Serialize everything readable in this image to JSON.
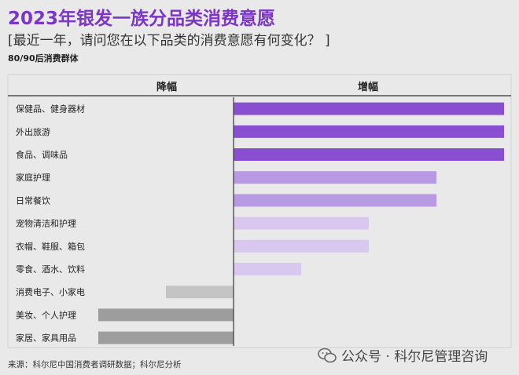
{
  "title": "2023年银发一族分品类消费意愿",
  "subtitle": "[最近一年，请问您在以下品类的消费意愿有何变化？ ]",
  "group_label": "80/90后消费群体",
  "source": "来源：科尔尼中国消费者调研数据；科尔尼分析",
  "watermark": "公众号 · 科尔尼管理咨询",
  "colors": {
    "title": "#7b35c9",
    "increase_strong": "#8a4fd0",
    "increase_medium": "#b79ae3",
    "increase_light": "#d8c8f0",
    "decrease_light": "#c4c4c4",
    "decrease_dark": "#9d9d9d"
  },
  "chart_data": {
    "type": "bar",
    "orientation": "horizontal-diverging",
    "column_headers": {
      "decrease": "降幅",
      "increase": "增幅"
    },
    "categories": [
      "保健品、健身器材",
      "外出旅游",
      "食品、调味品",
      "家庭护理",
      "日常餐饮",
      "宠物清洁和护理",
      "衣帽、鞋服、箱包",
      "零食、酒水、饮料",
      "消费电子、小家电",
      "美妆、个人护理",
      "家居、家具用品"
    ],
    "values": [
      4,
      4,
      4,
      3,
      3,
      2,
      2,
      1,
      -1,
      -2,
      -2
    ],
    "shades": [
      "strong",
      "strong",
      "strong",
      "medium",
      "medium",
      "light",
      "light",
      "light",
      "decrease_light",
      "decrease_dark",
      "decrease_dark"
    ],
    "units": "relative change (no axis values shown)",
    "grid": false,
    "legend": "none"
  }
}
